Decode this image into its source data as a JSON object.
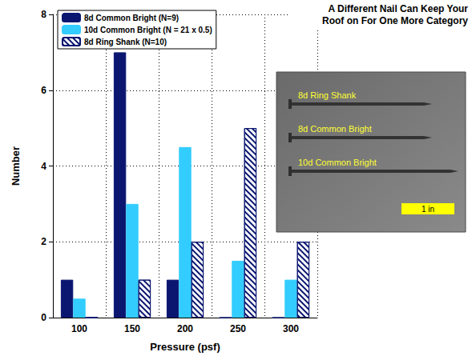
{
  "chart_data": {
    "type": "bar",
    "title": "A Different Nail Can Keep Your Roof on For One More Category",
    "x_label": "Pressure (psf)",
    "y_label": "Number",
    "categories": [
      "100",
      "150",
      "200",
      "250",
      "300"
    ],
    "series": [
      {
        "name": "8d Common Bright (N=9)",
        "color": "#0a1670",
        "values": [
          1,
          7,
          1,
          0,
          0
        ]
      },
      {
        "name": "10d Common Bright (N = 21 x 0.5)",
        "color": "#33ccff",
        "values": [
          0.5,
          3,
          4.5,
          1.5,
          1
        ]
      },
      {
        "name": "8d Ring Shank (N=10)",
        "color": "#0a1670",
        "marker": "hatch",
        "values": [
          0,
          1,
          2,
          5,
          2
        ]
      }
    ],
    "ylim": [
      0,
      8
    ],
    "yticks": [
      0,
      2,
      4,
      6,
      8
    ],
    "grid": true,
    "legend": "upper left",
    "annotations": {
      "nails": [
        "8d Ring Shank",
        "8d Common Bright",
        "10d Common Bright"
      ],
      "scale_bar": "1 in"
    }
  }
}
